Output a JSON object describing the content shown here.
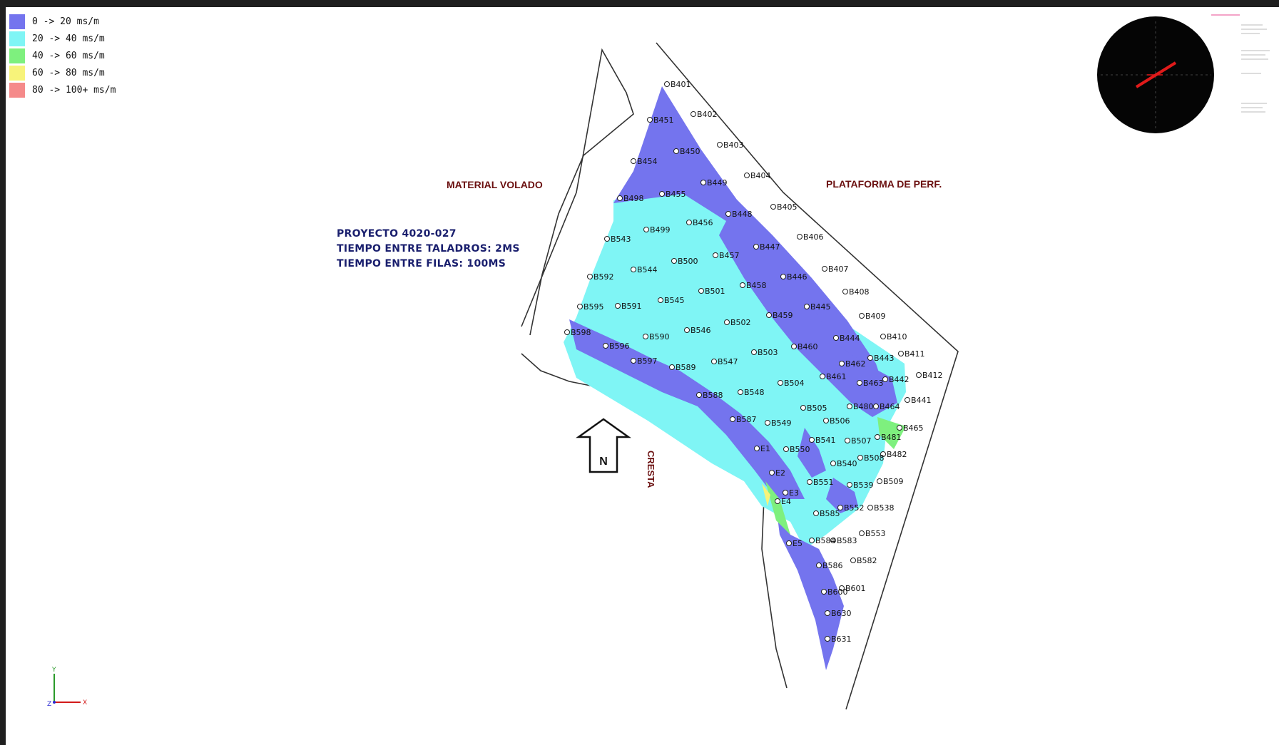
{
  "legend": [
    {
      "label": "0 -> 20 ms/m",
      "color": "#7474ee"
    },
    {
      "label": "20 -> 40 ms/m",
      "color": "#7ff5f5"
    },
    {
      "label": "40 -> 60 ms/m",
      "color": "#7ef07e"
    },
    {
      "label": "60 -> 80 ms/m",
      "color": "#f7f37a"
    },
    {
      "label": "80 -> 100+ ms/m",
      "color": "#f58a8a"
    }
  ],
  "labels": {
    "material_volado": "MATERIAL VOLADO",
    "plataforma": "PLATAFORMA DE PERF.",
    "cresta": "CRESTA",
    "north": "N"
  },
  "project": {
    "line1": "PROYECTO 4020-027",
    "line2": "TIEMPO ENTRE TALADROS: 2MS",
    "line3": "TIEMPO ENTRE FILAS: 100MS"
  },
  "axes": {
    "x": "X",
    "y": "Y",
    "z": "Z"
  },
  "holes": [
    "B401",
    "B402",
    "B403",
    "B404",
    "B405",
    "B406",
    "B407",
    "B408",
    "B409",
    "B410",
    "B411",
    "B412",
    "B441",
    "B465",
    "B451",
    "B450",
    "B449",
    "B448",
    "B447",
    "B446",
    "B445",
    "B444",
    "B443",
    "B442",
    "B464",
    "B481",
    "B482",
    "B454",
    "B455",
    "B456",
    "B457",
    "B458",
    "B459",
    "B460",
    "B461",
    "B462",
    "B463",
    "B480",
    "B507",
    "B508",
    "B509",
    "B538",
    "B498",
    "B499",
    "B500",
    "B501",
    "B502",
    "B503",
    "B504",
    "B505",
    "B506",
    "B541",
    "B540",
    "B539",
    "B552",
    "B553",
    "B543",
    "B544",
    "B545",
    "B546",
    "B547",
    "B548",
    "B549",
    "B550",
    "B551",
    "B585",
    "B583",
    "B582",
    "B592",
    "B591",
    "B590",
    "B589",
    "B588",
    "B587",
    "B586",
    "B601",
    "B630",
    "B631",
    "B595",
    "B596",
    "B597",
    "B598",
    "E1",
    "E2",
    "E3",
    "E4",
    "E5",
    "B584",
    "B600"
  ]
}
